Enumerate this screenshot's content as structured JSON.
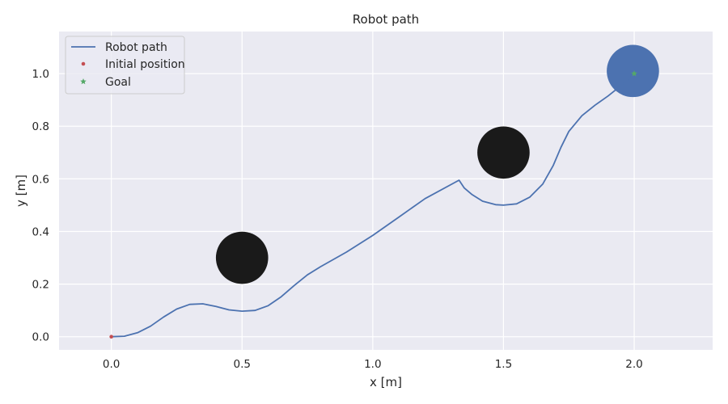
{
  "chart_data": {
    "type": "line",
    "title": "Robot path",
    "xlabel": "x [m]",
    "ylabel": "y [m]",
    "xlim": [
      -0.2,
      2.3
    ],
    "ylim": [
      -0.05,
      1.16
    ],
    "xticks": [
      0.0,
      0.5,
      1.0,
      1.5,
      2.0
    ],
    "yticks": [
      0.0,
      0.2,
      0.4,
      0.6,
      0.8,
      1.0
    ],
    "grid": true,
    "legend": {
      "location": "upper-left",
      "entries": [
        {
          "label": "Robot path",
          "marker": "line",
          "color": "#4c72b0"
        },
        {
          "label": "Initial position",
          "marker": "dot",
          "color": "#c44e52"
        },
        {
          "label": "Goal",
          "marker": "star",
          "color": "#55a868"
        }
      ]
    },
    "series": [
      {
        "name": "Robot path",
        "color": "#4c72b0",
        "points": [
          [
            0.0,
            0.0
          ],
          [
            0.05,
            0.002
          ],
          [
            0.1,
            0.015
          ],
          [
            0.15,
            0.04
          ],
          [
            0.2,
            0.075
          ],
          [
            0.25,
            0.105
          ],
          [
            0.3,
            0.123
          ],
          [
            0.35,
            0.125
          ],
          [
            0.4,
            0.115
          ],
          [
            0.45,
            0.102
          ],
          [
            0.5,
            0.097
          ],
          [
            0.55,
            0.1
          ],
          [
            0.6,
            0.118
          ],
          [
            0.65,
            0.152
          ],
          [
            0.7,
            0.195
          ],
          [
            0.75,
            0.235
          ],
          [
            0.8,
            0.266
          ],
          [
            0.9,
            0.322
          ],
          [
            1.0,
            0.385
          ],
          [
            1.1,
            0.455
          ],
          [
            1.2,
            0.525
          ],
          [
            1.33,
            0.595
          ],
          [
            1.35,
            0.565
          ],
          [
            1.38,
            0.54
          ],
          [
            1.42,
            0.515
          ],
          [
            1.47,
            0.502
          ],
          [
            1.5,
            0.5
          ],
          [
            1.55,
            0.505
          ],
          [
            1.6,
            0.53
          ],
          [
            1.65,
            0.58
          ],
          [
            1.69,
            0.65
          ],
          [
            1.72,
            0.72
          ],
          [
            1.75,
            0.78
          ],
          [
            1.8,
            0.84
          ],
          [
            1.85,
            0.88
          ],
          [
            1.9,
            0.915
          ],
          [
            1.95,
            0.955
          ],
          [
            1.99,
            0.99
          ],
          [
            2.0,
            1.0
          ]
        ]
      },
      {
        "name": "Initial position",
        "color": "#c44e52",
        "points": [
          [
            0.0,
            0.0
          ]
        ]
      },
      {
        "name": "Goal",
        "color": "#55a868",
        "points": [
          [
            2.0,
            1.0
          ]
        ]
      }
    ],
    "obstacles": [
      {
        "x": 0.5,
        "y": 0.3,
        "radius": 0.1,
        "color": "#1a1a1a"
      },
      {
        "x": 1.5,
        "y": 0.7,
        "radius": 0.1,
        "color": "#1a1a1a"
      }
    ],
    "goal_region": {
      "x": 1.995,
      "y": 1.01,
      "radius": 0.1,
      "color": "#4c72b0"
    },
    "colors": {
      "plot_background": "#eaeaf2",
      "grid": "#ffffff",
      "text": "#262626"
    }
  }
}
